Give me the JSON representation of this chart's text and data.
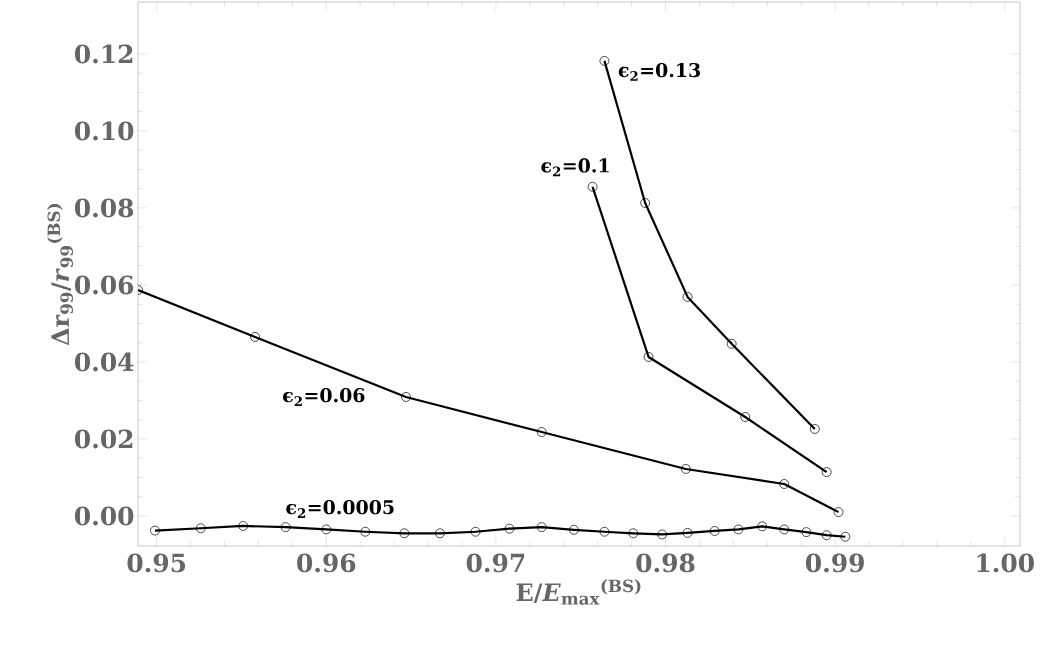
{
  "chart_data": {
    "type": "line",
    "xlabel": "E/*E*$_{max}$$^{(BS)}$",
    "ylabel": "Δr$_{99}$/*r*$_{99}$$^{(BS)}$",
    "xlim": [
      0.9489,
      1.0009
    ],
    "ylim": [
      -0.0078,
      0.1335
    ],
    "xticks": [
      0.95,
      0.96,
      0.97,
      0.98,
      0.99,
      {
        "value": 1.0,
        "label": "1.00"
      }
    ],
    "yticks": [
      {
        "value": 0.0,
        "label": "0.00"
      },
      0.02,
      0.04,
      0.06,
      0.08,
      {
        "value": 0.1,
        "label": "0.10"
      },
      0.12
    ],
    "marker": "circle",
    "line_style": "solid",
    "series": [
      {
        "name": "ϵ$_{2}$=0.13",
        "color": "#000000",
        "x": [
          0.9764,
          0.9788,
          0.9813,
          0.9839,
          0.9888
        ],
        "values": [
          0.1182,
          0.0813,
          0.0569,
          0.0447,
          0.0226
        ]
      },
      {
        "name": "ϵ$_{2}$=0.1",
        "color": "#000000",
        "x": [
          0.9757,
          0.979,
          0.9847,
          0.9895
        ],
        "values": [
          0.0855,
          0.0413,
          0.0257,
          0.0114
        ]
      },
      {
        "name": "ϵ$_{2}$=0.06",
        "color": "#000000",
        "x": [
          0.9489,
          0.9558,
          0.9647,
          0.9727,
          0.9812,
          0.987,
          0.9902
        ],
        "values": [
          0.0587,
          0.0465,
          0.0309,
          0.0218,
          0.0122,
          0.0083,
          0.001
        ]
      },
      {
        "name": "ϵ$_{2}$=0.0005",
        "color": "#000000",
        "x": [
          0.9499,
          0.9526,
          0.9551,
          0.9576,
          0.96,
          0.9623,
          0.9646,
          0.9667,
          0.9688,
          0.9708,
          0.9727,
          0.9746,
          0.9764,
          0.9781,
          0.9798,
          0.9813,
          0.9829,
          0.9843,
          0.9857,
          0.987,
          0.9883,
          0.9895,
          0.9906
        ],
        "values": [
          -0.0038,
          -0.0032,
          -0.0026,
          -0.0029,
          -0.0035,
          -0.0041,
          -0.0045,
          -0.0045,
          -0.0041,
          -0.0033,
          -0.0029,
          -0.0036,
          -0.0041,
          -0.0045,
          -0.0048,
          -0.0044,
          -0.0039,
          -0.0035,
          -0.0027,
          -0.0035,
          -0.0042,
          -0.005,
          -0.0054
        ]
      }
    ]
  }
}
